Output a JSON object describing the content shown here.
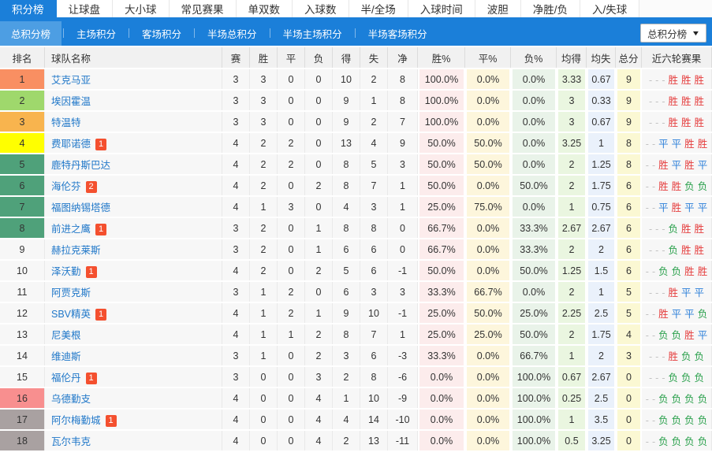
{
  "top_nav": {
    "tabs": [
      {
        "label": "积分榜",
        "active": true
      },
      {
        "label": "让球盘",
        "active": false
      },
      {
        "label": "大小球",
        "active": false
      },
      {
        "label": "常见赛果",
        "active": false
      },
      {
        "label": "单双数",
        "active": false
      },
      {
        "label": "入球数",
        "active": false
      },
      {
        "label": "半/全场",
        "active": false
      },
      {
        "label": "入球时间",
        "active": false
      },
      {
        "label": "波胆",
        "active": false
      },
      {
        "label": "净胜/负",
        "active": false
      },
      {
        "label": "入/失球",
        "active": false
      }
    ]
  },
  "sub_nav": {
    "items": [
      {
        "label": "总积分榜",
        "active": true
      },
      {
        "label": "主场积分",
        "active": false
      },
      {
        "label": "客场积分",
        "active": false
      },
      {
        "label": "半场总积分",
        "active": false
      },
      {
        "label": "半场主场积分",
        "active": false
      },
      {
        "label": "半场客场积分",
        "active": false
      }
    ],
    "dropdown_value": "总积分榜"
  },
  "table": {
    "headers": [
      "排名",
      "球队名称",
      "赛",
      "胜",
      "平",
      "负",
      "得",
      "失",
      "净",
      "胜%",
      "平%",
      "负%",
      "均得",
      "均失",
      "总分",
      "近六轮赛果"
    ],
    "rows": [
      {
        "rank": "1",
        "rank_bg": "#f98f62",
        "team": "艾克马亚",
        "badge": "",
        "played": "3",
        "win": "3",
        "draw": "0",
        "loss": "0",
        "gf": "10",
        "ga": "2",
        "gd": "8",
        "win_pct": "100.0%",
        "draw_pct": "0.0%",
        "loss_pct": "0.0%",
        "avg_gf": "3.33",
        "avg_ga": "0.67",
        "points": "9",
        "recent": [
          "-",
          "-",
          "-",
          "胜",
          "胜",
          "胜"
        ]
      },
      {
        "rank": "2",
        "rank_bg": "#9fd86c",
        "team": "埃因霍温",
        "badge": "",
        "played": "3",
        "win": "3",
        "draw": "0",
        "loss": "0",
        "gf": "9",
        "ga": "1",
        "gd": "8",
        "win_pct": "100.0%",
        "draw_pct": "0.0%",
        "loss_pct": "0.0%",
        "avg_gf": "3",
        "avg_ga": "0.33",
        "points": "9",
        "recent": [
          "-",
          "-",
          "-",
          "胜",
          "胜",
          "胜"
        ]
      },
      {
        "rank": "3",
        "rank_bg": "#f8b44e",
        "team": "特温特",
        "badge": "",
        "played": "3",
        "win": "3",
        "draw": "0",
        "loss": "0",
        "gf": "9",
        "ga": "2",
        "gd": "7",
        "win_pct": "100.0%",
        "draw_pct": "0.0%",
        "loss_pct": "0.0%",
        "avg_gf": "3",
        "avg_ga": "0.67",
        "points": "9",
        "recent": [
          "-",
          "-",
          "-",
          "胜",
          "胜",
          "胜"
        ]
      },
      {
        "rank": "4",
        "rank_bg": "#ffff00",
        "team": "费耶诺德",
        "badge": "1",
        "played": "4",
        "win": "2",
        "draw": "2",
        "loss": "0",
        "gf": "13",
        "ga": "4",
        "gd": "9",
        "win_pct": "50.0%",
        "draw_pct": "50.0%",
        "loss_pct": "0.0%",
        "avg_gf": "3.25",
        "avg_ga": "1",
        "points": "8",
        "recent": [
          "-",
          "-",
          "平",
          "平",
          "胜",
          "胜"
        ]
      },
      {
        "rank": "5",
        "rank_bg": "#4fa17a",
        "team": "鹿特丹斯巴达",
        "badge": "",
        "played": "4",
        "win": "2",
        "draw": "2",
        "loss": "0",
        "gf": "8",
        "ga": "5",
        "gd": "3",
        "win_pct": "50.0%",
        "draw_pct": "50.0%",
        "loss_pct": "0.0%",
        "avg_gf": "2",
        "avg_ga": "1.25",
        "points": "8",
        "recent": [
          "-",
          "-",
          "胜",
          "平",
          "胜",
          "平"
        ]
      },
      {
        "rank": "6",
        "rank_bg": "#4fa17a",
        "team": "海伦芬",
        "badge": "2",
        "played": "4",
        "win": "2",
        "draw": "0",
        "loss": "2",
        "gf": "8",
        "ga": "7",
        "gd": "1",
        "win_pct": "50.0%",
        "draw_pct": "0.0%",
        "loss_pct": "50.0%",
        "avg_gf": "2",
        "avg_ga": "1.75",
        "points": "6",
        "recent": [
          "-",
          "-",
          "胜",
          "胜",
          "负",
          "负"
        ]
      },
      {
        "rank": "7",
        "rank_bg": "#4fa17a",
        "team": "福图纳锡塔德",
        "badge": "",
        "played": "4",
        "win": "1",
        "draw": "3",
        "loss": "0",
        "gf": "4",
        "ga": "3",
        "gd": "1",
        "win_pct": "25.0%",
        "draw_pct": "75.0%",
        "loss_pct": "0.0%",
        "avg_gf": "1",
        "avg_ga": "0.75",
        "points": "6",
        "recent": [
          "-",
          "-",
          "平",
          "胜",
          "平",
          "平"
        ]
      },
      {
        "rank": "8",
        "rank_bg": "#4fa17a",
        "team": "前进之鹰",
        "badge": "1",
        "played": "3",
        "win": "2",
        "draw": "0",
        "loss": "1",
        "gf": "8",
        "ga": "8",
        "gd": "0",
        "win_pct": "66.7%",
        "draw_pct": "0.0%",
        "loss_pct": "33.3%",
        "avg_gf": "2.67",
        "avg_ga": "2.67",
        "points": "6",
        "recent": [
          "-",
          "-",
          "-",
          "负",
          "胜",
          "胜"
        ]
      },
      {
        "rank": "9",
        "rank_bg": "",
        "team": "赫拉克莱斯",
        "badge": "",
        "played": "3",
        "win": "2",
        "draw": "0",
        "loss": "1",
        "gf": "6",
        "ga": "6",
        "gd": "0",
        "win_pct": "66.7%",
        "draw_pct": "0.0%",
        "loss_pct": "33.3%",
        "avg_gf": "2",
        "avg_ga": "2",
        "points": "6",
        "recent": [
          "-",
          "-",
          "-",
          "负",
          "胜",
          "胜"
        ]
      },
      {
        "rank": "10",
        "rank_bg": "",
        "team": "泽沃勤",
        "badge": "1",
        "played": "4",
        "win": "2",
        "draw": "0",
        "loss": "2",
        "gf": "5",
        "ga": "6",
        "gd": "-1",
        "win_pct": "50.0%",
        "draw_pct": "0.0%",
        "loss_pct": "50.0%",
        "avg_gf": "1.25",
        "avg_ga": "1.5",
        "points": "6",
        "recent": [
          "-",
          "-",
          "负",
          "负",
          "胜",
          "胜"
        ]
      },
      {
        "rank": "11",
        "rank_bg": "",
        "team": "阿贾克斯",
        "badge": "",
        "played": "3",
        "win": "1",
        "draw": "2",
        "loss": "0",
        "gf": "6",
        "ga": "3",
        "gd": "3",
        "win_pct": "33.3%",
        "draw_pct": "66.7%",
        "loss_pct": "0.0%",
        "avg_gf": "2",
        "avg_ga": "1",
        "points": "5",
        "recent": [
          "-",
          "-",
          "-",
          "胜",
          "平",
          "平"
        ]
      },
      {
        "rank": "12",
        "rank_bg": "",
        "team": "SBV精英",
        "badge": "1",
        "played": "4",
        "win": "1",
        "draw": "2",
        "loss": "1",
        "gf": "9",
        "ga": "10",
        "gd": "-1",
        "win_pct": "25.0%",
        "draw_pct": "50.0%",
        "loss_pct": "25.0%",
        "avg_gf": "2.25",
        "avg_ga": "2.5",
        "points": "5",
        "recent": [
          "-",
          "-",
          "胜",
          "平",
          "平",
          "负"
        ]
      },
      {
        "rank": "13",
        "rank_bg": "",
        "team": "尼美根",
        "badge": "",
        "played": "4",
        "win": "1",
        "draw": "1",
        "loss": "2",
        "gf": "8",
        "ga": "7",
        "gd": "1",
        "win_pct": "25.0%",
        "draw_pct": "25.0%",
        "loss_pct": "50.0%",
        "avg_gf": "2",
        "avg_ga": "1.75",
        "points": "4",
        "recent": [
          "-",
          "-",
          "负",
          "负",
          "胜",
          "平"
        ]
      },
      {
        "rank": "14",
        "rank_bg": "",
        "team": "维迪斯",
        "badge": "",
        "played": "3",
        "win": "1",
        "draw": "0",
        "loss": "2",
        "gf": "3",
        "ga": "6",
        "gd": "-3",
        "win_pct": "33.3%",
        "draw_pct": "0.0%",
        "loss_pct": "66.7%",
        "avg_gf": "1",
        "avg_ga": "2",
        "points": "3",
        "recent": [
          "-",
          "-",
          "-",
          "胜",
          "负",
          "负"
        ]
      },
      {
        "rank": "15",
        "rank_bg": "",
        "team": "福伦丹",
        "badge": "1",
        "played": "3",
        "win": "0",
        "draw": "0",
        "loss": "3",
        "gf": "2",
        "ga": "8",
        "gd": "-6",
        "win_pct": "0.0%",
        "draw_pct": "0.0%",
        "loss_pct": "100.0%",
        "avg_gf": "0.67",
        "avg_ga": "2.67",
        "points": "0",
        "recent": [
          "-",
          "-",
          "-",
          "负",
          "负",
          "负"
        ]
      },
      {
        "rank": "16",
        "rank_bg": "#f88f8f",
        "team": "乌德勤支",
        "badge": "",
        "played": "4",
        "win": "0",
        "draw": "0",
        "loss": "4",
        "gf": "1",
        "ga": "10",
        "gd": "-9",
        "win_pct": "0.0%",
        "draw_pct": "0.0%",
        "loss_pct": "100.0%",
        "avg_gf": "0.25",
        "avg_ga": "2.5",
        "points": "0",
        "recent": [
          "-",
          "-",
          "负",
          "负",
          "负",
          "负"
        ]
      },
      {
        "rank": "17",
        "rank_bg": "#a9a1a1",
        "team": "阿尔梅勤城",
        "badge": "1",
        "played": "4",
        "win": "0",
        "draw": "0",
        "loss": "4",
        "gf": "4",
        "ga": "14",
        "gd": "-10",
        "win_pct": "0.0%",
        "draw_pct": "0.0%",
        "loss_pct": "100.0%",
        "avg_gf": "1",
        "avg_ga": "3.5",
        "points": "0",
        "recent": [
          "-",
          "-",
          "负",
          "负",
          "负",
          "负"
        ]
      },
      {
        "rank": "18",
        "rank_bg": "#a9a1a1",
        "team": "瓦尔韦克",
        "badge": "",
        "played": "4",
        "win": "0",
        "draw": "0",
        "loss": "4",
        "gf": "2",
        "ga": "13",
        "gd": "-11",
        "win_pct": "0.0%",
        "draw_pct": "0.0%",
        "loss_pct": "100.0%",
        "avg_gf": "0.5",
        "avg_ga": "3.25",
        "points": "0",
        "recent": [
          "-",
          "-",
          "负",
          "负",
          "负",
          "负"
        ]
      }
    ]
  },
  "colors": {
    "accent": "#1b7fd9",
    "subnav_active": "#4d9ee3",
    "link": "#2178c9",
    "badge": "#f4502f",
    "header_bg": "#f1f1f1",
    "row_bg": "#f7f7f7",
    "cell_win": "#fcecec",
    "cell_draw": "#fdf6dc",
    "cell_loss": "#e9f3e9",
    "cell_avg_gf": "#eaf6e0",
    "cell_avg_ga": "#eaf1fb",
    "cell_points": "#fbf8d3",
    "result_win": "#e53c3c",
    "result_draw": "#2b7fd9",
    "result_loss": "#2aa04c",
    "result_dash": "#c2c2c2"
  }
}
